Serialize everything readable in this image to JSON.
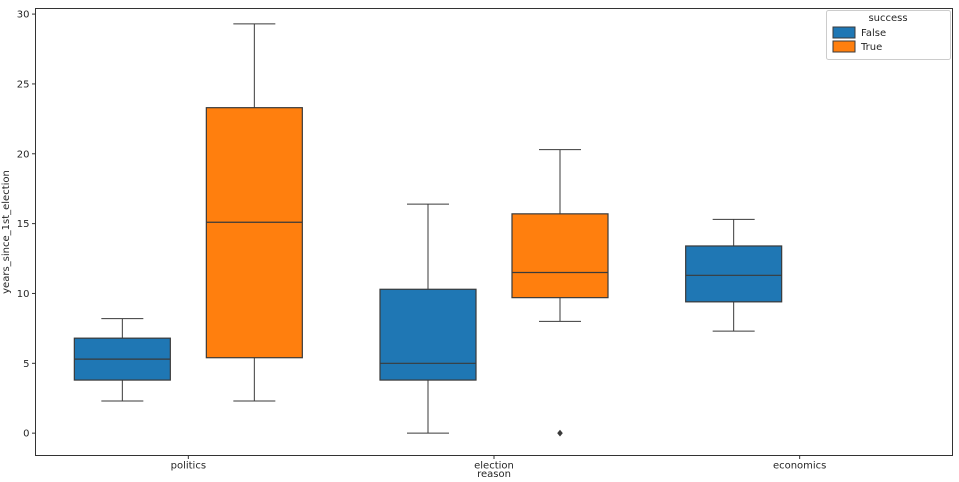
{
  "figure": {
    "background": "#ffffff"
  },
  "chart_data": {
    "type": "boxplot",
    "title": "",
    "xlabel": "reason",
    "ylabel": "years_since_1st_election",
    "categories": [
      "politics",
      "election",
      "economics"
    ],
    "yticks": [
      0,
      5,
      10,
      15,
      20,
      25,
      30
    ],
    "ylim": [
      -1.6,
      30.4
    ],
    "grid": false,
    "line_color": "#3a3a3a",
    "legend": {
      "title": "success",
      "position": "upper right",
      "entries": [
        {
          "label": "False",
          "color": "#1f77b4"
        },
        {
          "label": "True",
          "color": "#ff7f0e"
        }
      ]
    },
    "series": [
      {
        "name": "False",
        "color": "#1f77b4",
        "boxes": [
          {
            "category": "politics",
            "whislo": 2.3,
            "q1": 3.8,
            "med": 5.3,
            "q3": 6.8,
            "whishi": 8.2,
            "fliers": []
          },
          {
            "category": "election",
            "whislo": 0.0,
            "q1": 3.8,
            "med": 5.0,
            "q3": 10.3,
            "whishi": 16.4,
            "fliers": []
          },
          {
            "category": "economics",
            "whislo": 7.3,
            "q1": 9.4,
            "med": 11.3,
            "q3": 13.4,
            "whishi": 15.3,
            "fliers": []
          }
        ]
      },
      {
        "name": "True",
        "color": "#ff7f0e",
        "boxes": [
          {
            "category": "politics",
            "whislo": 2.3,
            "q1": 5.4,
            "med": 15.1,
            "q3": 23.3,
            "whishi": 29.3,
            "fliers": []
          },
          {
            "category": "election",
            "whislo": 8.0,
            "q1": 9.7,
            "med": 11.5,
            "q3": 15.7,
            "whishi": 20.3,
            "fliers": [
              0.0
            ]
          },
          null
        ]
      }
    ]
  }
}
